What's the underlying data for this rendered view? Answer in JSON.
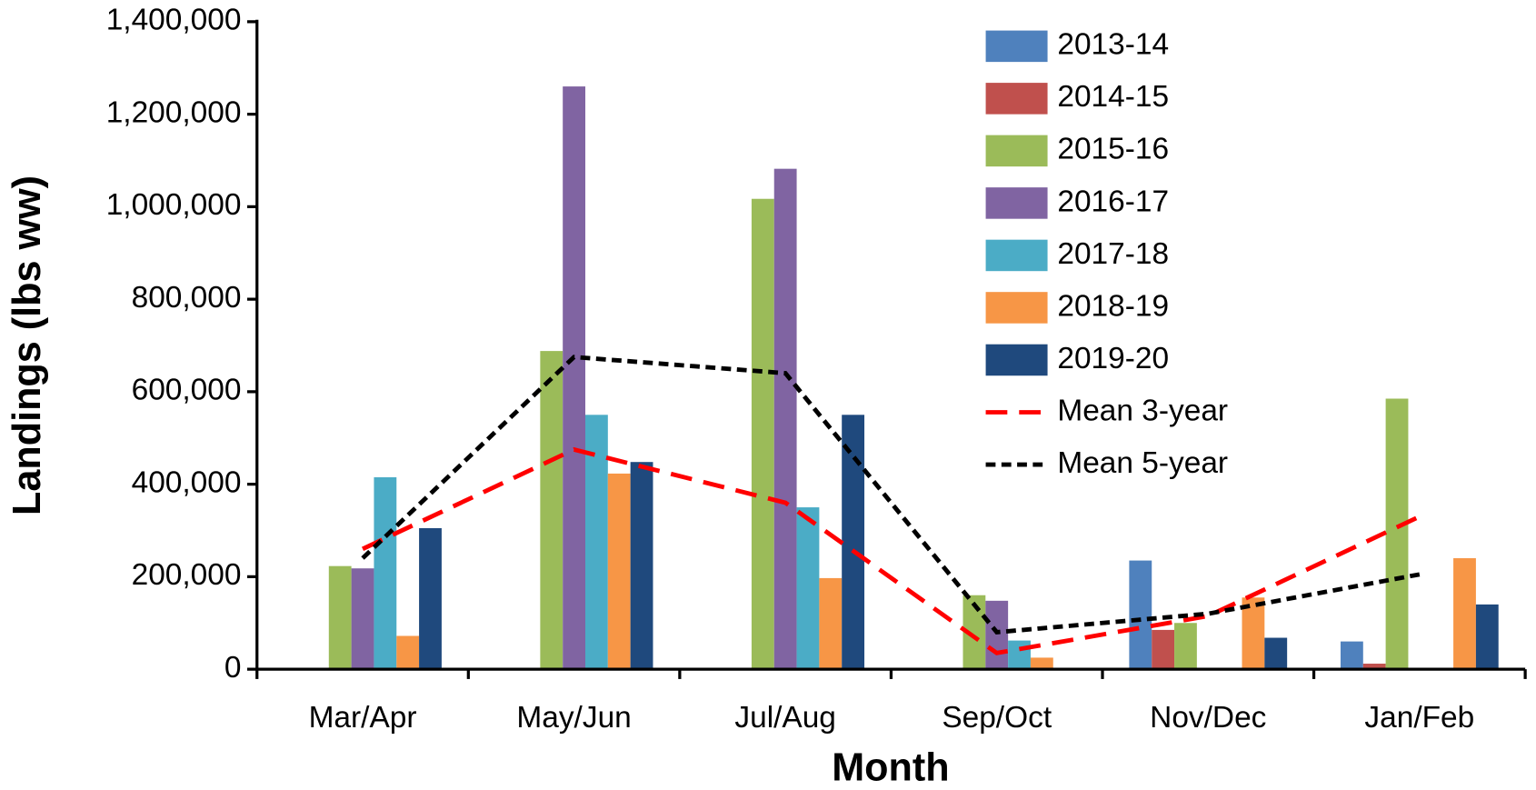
{
  "chart_data": {
    "type": "bar",
    "x_label": "Month",
    "y_label": "Landings (lbs ww)",
    "categories": [
      "Mar/Apr",
      "May/Jun",
      "Jul/Aug",
      "Sep/Oct",
      "Nov/Dec",
      "Jan/Feb"
    ],
    "series": [
      {
        "name": "2013-14",
        "color": "#4f81bd",
        "values": [
          null,
          null,
          null,
          null,
          235000,
          60000
        ]
      },
      {
        "name": "2014-15",
        "color": "#c0504d",
        "values": [
          null,
          null,
          null,
          null,
          85000,
          12000
        ]
      },
      {
        "name": "2015-16",
        "color": "#9bbb59",
        "values": [
          223000,
          688000,
          1017000,
          160000,
          100000,
          585000
        ]
      },
      {
        "name": "2016-17",
        "color": "#8064a2",
        "values": [
          218000,
          1260000,
          1082000,
          148000,
          null,
          null
        ]
      },
      {
        "name": "2017-18",
        "color": "#4bacc6",
        "values": [
          415000,
          550000,
          350000,
          62000,
          null,
          null
        ]
      },
      {
        "name": "2018-19",
        "color": "#f79646",
        "values": [
          72000,
          423000,
          197000,
          25000,
          155000,
          240000
        ]
      },
      {
        "name": "2019-20",
        "color": "#1f497d",
        "values": [
          305000,
          448000,
          550000,
          null,
          68000,
          140000
        ]
      },
      {
        "name": "Mean 3-year",
        "type": "line",
        "color": "#ff0000",
        "dash": "dashed",
        "values": [
          260000,
          475000,
          360000,
          35000,
          115000,
          330000
        ]
      },
      {
        "name": "Mean 5-year",
        "type": "line",
        "color": "#000000",
        "dash": "dotted",
        "values": [
          240000,
          675000,
          640000,
          80000,
          120000,
          205000
        ]
      }
    ],
    "ylim": [
      0,
      1400000
    ],
    "yticks": [
      {
        "value": 0,
        "label": "0"
      },
      {
        "value": 200000,
        "label": "200,000"
      },
      {
        "value": 400000,
        "label": "400,000"
      },
      {
        "value": 600000,
        "label": "600,000"
      },
      {
        "value": 800000,
        "label": "800,000"
      },
      {
        "value": 1000000,
        "label": "1,000,000"
      },
      {
        "value": 1200000,
        "label": "1,200,000"
      },
      {
        "value": 1400000,
        "label": "1,400,000"
      }
    ],
    "legend": "upper right",
    "grid": false
  }
}
